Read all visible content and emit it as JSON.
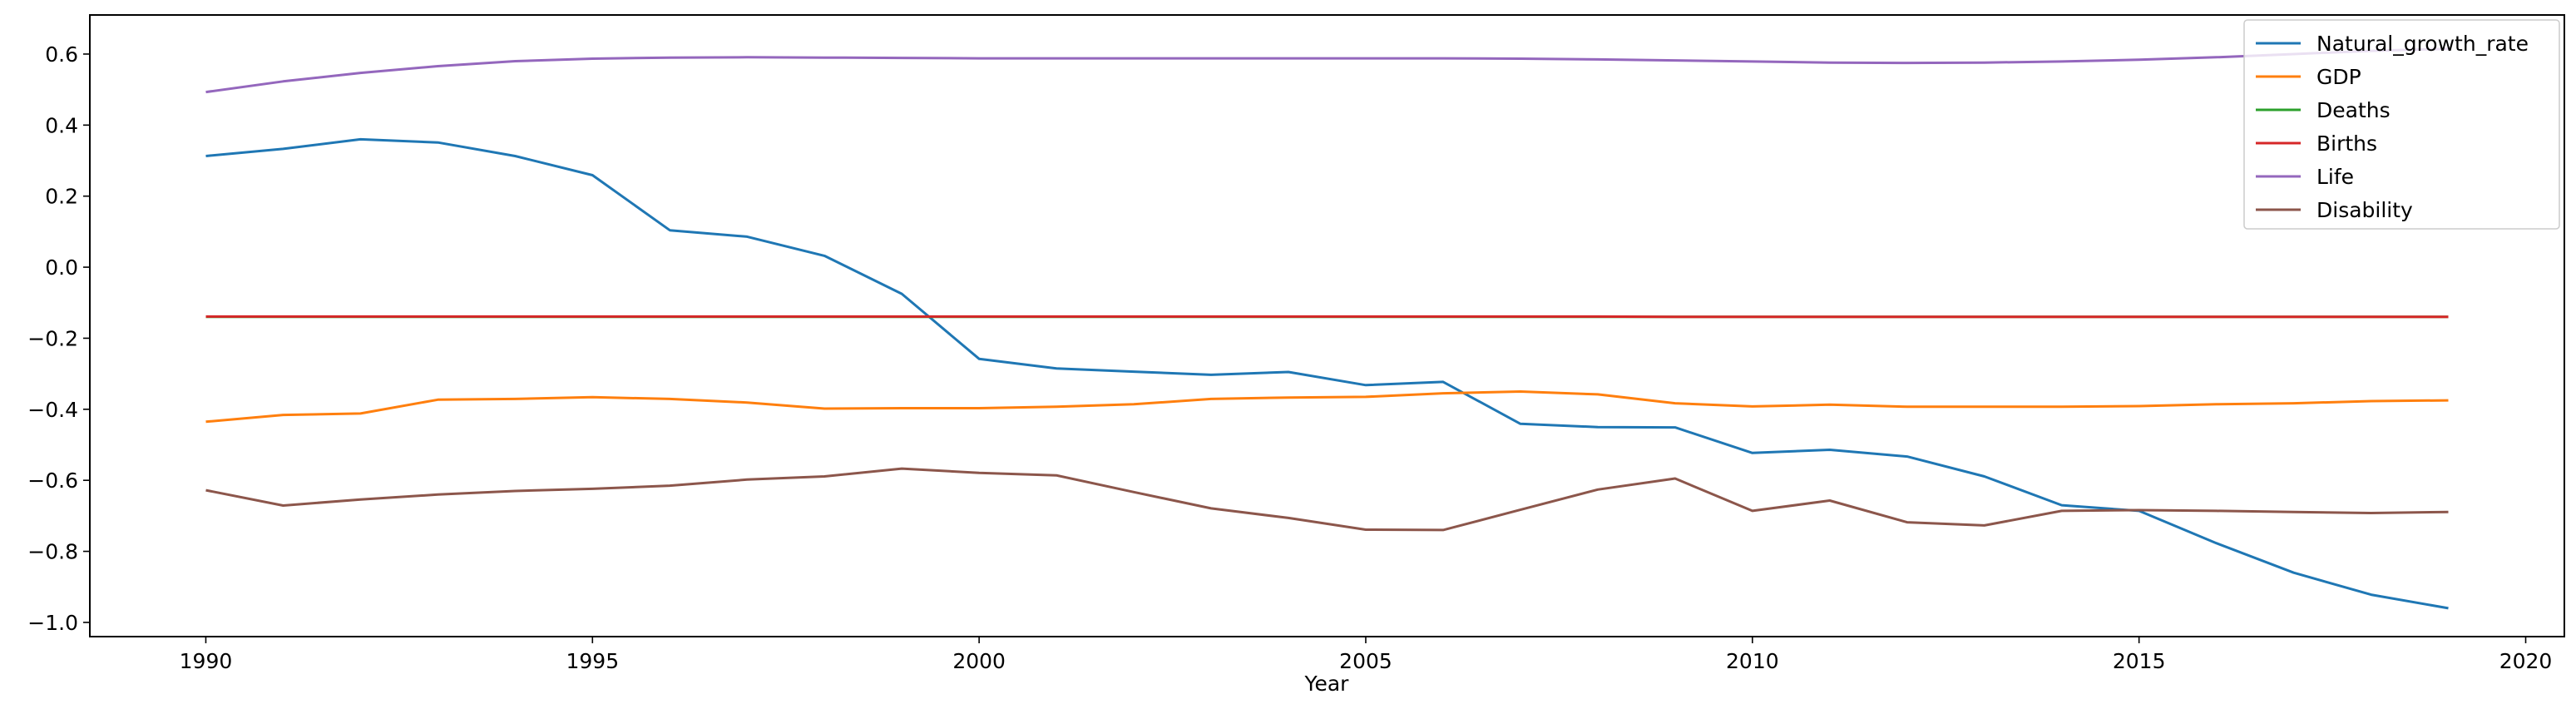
{
  "chart_data": {
    "type": "line",
    "title": "",
    "xlabel": "Year",
    "ylabel": "",
    "xlim": [
      1988.5,
      2020.5
    ],
    "ylim": [
      -1.04,
      0.71
    ],
    "xticks": [
      1990,
      1995,
      2000,
      2005,
      2010,
      2015,
      2020
    ],
    "yticks": [
      -1.0,
      -0.8,
      -0.6,
      -0.4,
      -0.2,
      0.0,
      0.2,
      0.4,
      0.6
    ],
    "ytick_labels": [
      "−1.0",
      "−0.8",
      "−0.6",
      "−0.4",
      "−0.2",
      "0.0",
      "0.2",
      "0.4",
      "0.6"
    ],
    "grid": false,
    "legend_position": "top-right",
    "x": [
      1990,
      1991,
      1992,
      1993,
      1994,
      1995,
      1996,
      1997,
      1998,
      1999,
      2000,
      2001,
      2002,
      2003,
      2004,
      2005,
      2006,
      2007,
      2008,
      2009,
      2010,
      2011,
      2012,
      2013,
      2014,
      2015,
      2016,
      2017,
      2018,
      2019
    ],
    "series": [
      {
        "name": "Natural_growth_rate",
        "color": "#1f77b4",
        "values": [
          0.313,
          0.333,
          0.36,
          0.351,
          0.313,
          0.259,
          0.104,
          0.086,
          0.032,
          -0.075,
          -0.258,
          -0.285,
          -0.294,
          -0.303,
          -0.295,
          -0.332,
          -0.323,
          -0.441,
          -0.45,
          -0.451,
          -0.523,
          -0.514,
          -0.533,
          -0.589,
          -0.67,
          -0.686,
          -0.777,
          -0.86,
          -0.922,
          -0.96
        ]
      },
      {
        "name": "GDP",
        "color": "#ff7f0e",
        "values": [
          -0.435,
          -0.416,
          -0.412,
          -0.373,
          -0.371,
          -0.366,
          -0.371,
          -0.381,
          -0.398,
          -0.397,
          -0.397,
          -0.393,
          -0.386,
          -0.371,
          -0.367,
          -0.365,
          -0.355,
          -0.35,
          -0.358,
          -0.383,
          -0.392,
          -0.387,
          -0.393,
          -0.393,
          -0.393,
          -0.391,
          -0.386,
          -0.383,
          -0.377,
          -0.375
        ]
      },
      {
        "name": "Deaths",
        "color": "#2ca02c",
        "values": [
          -0.14,
          -0.14,
          -0.14,
          -0.14,
          -0.14,
          -0.14,
          -0.14,
          -0.14,
          -0.14,
          -0.14,
          -0.14,
          -0.14,
          -0.14,
          -0.14,
          -0.14,
          -0.14,
          -0.14,
          -0.14,
          -0.14,
          -0.14,
          -0.14,
          -0.14,
          -0.14,
          -0.14,
          -0.14,
          -0.14,
          -0.14,
          -0.14,
          -0.14,
          -0.14
        ]
      },
      {
        "name": "Births",
        "color": "#d62728",
        "values": [
          -0.139,
          -0.139,
          -0.139,
          -0.139,
          -0.139,
          -0.139,
          -0.139,
          -0.139,
          -0.139,
          -0.139,
          -0.139,
          -0.139,
          -0.139,
          -0.139,
          -0.139,
          -0.139,
          -0.139,
          -0.139,
          -0.139,
          -0.14,
          -0.14,
          -0.14,
          -0.14,
          -0.14,
          -0.14,
          -0.14,
          -0.14,
          -0.14,
          -0.14,
          -0.14
        ]
      },
      {
        "name": "Life",
        "color": "#9467bd",
        "values": [
          0.493,
          0.523,
          0.547,
          0.566,
          0.58,
          0.587,
          0.59,
          0.591,
          0.59,
          0.589,
          0.588,
          0.588,
          0.588,
          0.588,
          0.588,
          0.588,
          0.588,
          0.587,
          0.585,
          0.582,
          0.579,
          0.576,
          0.575,
          0.576,
          0.579,
          0.584,
          0.591,
          0.6,
          0.609,
          0.615
        ]
      },
      {
        "name": "Disability",
        "color": "#8c564b",
        "values": [
          -0.628,
          -0.671,
          -0.654,
          -0.64,
          -0.63,
          -0.624,
          -0.615,
          -0.598,
          -0.589,
          -0.567,
          -0.579,
          -0.586,
          -0.633,
          -0.679,
          -0.706,
          -0.739,
          -0.74,
          -0.683,
          -0.626,
          -0.595,
          -0.686,
          -0.657,
          -0.718,
          -0.727,
          -0.686,
          -0.684,
          -0.686,
          -0.689,
          -0.692,
          -0.689
        ]
      }
    ]
  }
}
